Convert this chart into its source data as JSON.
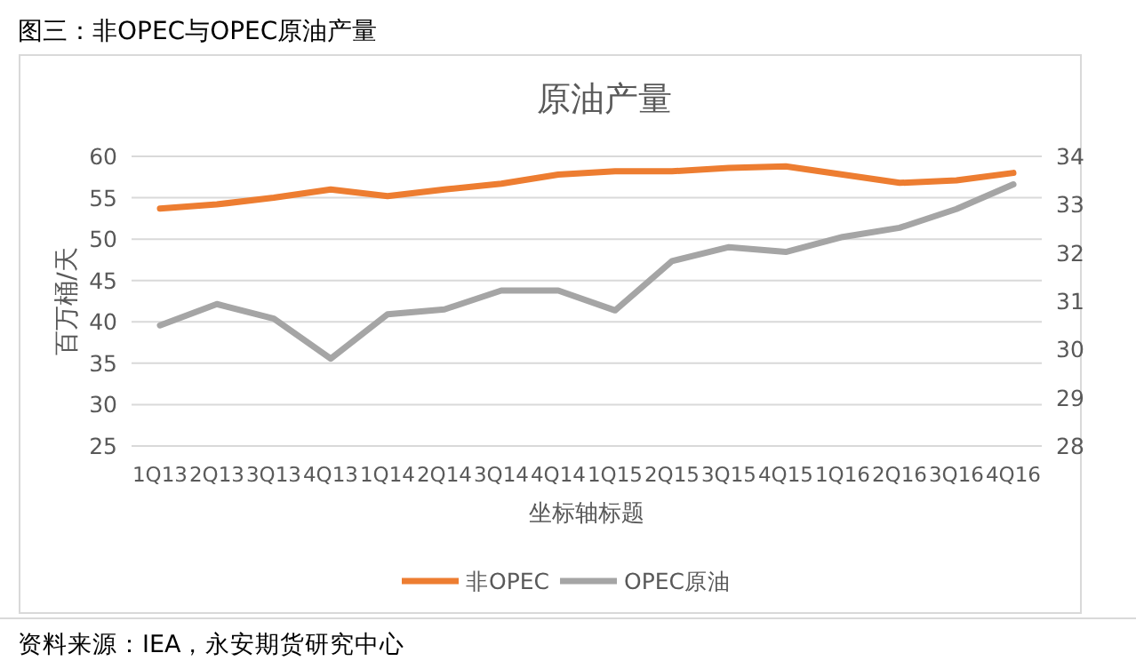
{
  "chart_data": {
    "type": "line",
    "title": "原油产量",
    "subtitle": "图三：非OPEC与OPEC原油产量",
    "xlabel": "坐标轴标题",
    "ylabel": "百万桶/天",
    "annotations": [
      "资料来源：IEA，永安期货研究中心"
    ],
    "categories": [
      "1Q13",
      "2Q13",
      "3Q13",
      "4Q13",
      "1Q14",
      "2Q14",
      "3Q14",
      "4Q14",
      "1Q15",
      "2Q15",
      "3Q15",
      "4Q15",
      "1Q16",
      "2Q16",
      "3Q16",
      "4Q16"
    ],
    "series": [
      {
        "name": "非OPEC",
        "color": "#ed7d31",
        "values": [
          53.7,
          54.2,
          55.0,
          56.0,
          55.2,
          56.0,
          56.7,
          57.8,
          58.2,
          58.2,
          58.6,
          58.8,
          57.8,
          56.8,
          57.1,
          58.0
        ]
      },
      {
        "name": "OPEC原油",
        "color": "#a5a5a5",
        "axis": "y2",
        "values": [
          30.5,
          30.94,
          30.64,
          29.81,
          30.73,
          30.83,
          31.22,
          31.22,
          30.81,
          31.83,
          32.12,
          32.02,
          32.33,
          32.52,
          32.91,
          33.42
        ]
      }
    ],
    "ylim": [
      25,
      60
    ],
    "yticks": [
      25,
      30,
      35,
      40,
      45,
      50,
      55,
      60
    ],
    "y2lim": [
      28,
      34
    ],
    "y2ticks": [
      28,
      29,
      30,
      31,
      32,
      33,
      34
    ],
    "grid": "y",
    "legend": "bottom",
    "marker": "none",
    "line_style": "solid"
  }
}
